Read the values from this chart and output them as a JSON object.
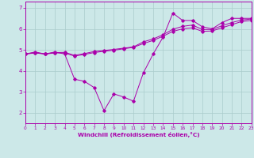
{
  "xlabel": "Windchill (Refroidissement éolien,°C)",
  "bg_color": "#cce8e8",
  "line_color": "#aa00aa",
  "grid_color": "#aacccc",
  "xlim": [
    0,
    23
  ],
  "ylim": [
    1.5,
    7.3
  ],
  "yticks": [
    2,
    3,
    4,
    5,
    6,
    7
  ],
  "xticks": [
    0,
    1,
    2,
    3,
    4,
    5,
    6,
    7,
    8,
    9,
    10,
    11,
    12,
    13,
    14,
    15,
    16,
    17,
    18,
    19,
    20,
    21,
    22,
    23
  ],
  "series": [
    [
      4.8,
      4.9,
      4.8,
      4.9,
      4.8,
      3.6,
      3.5,
      3.2,
      2.1,
      2.9,
      2.75,
      2.55,
      3.9,
      4.8,
      5.6,
      6.75,
      6.4,
      6.4,
      6.1,
      6.0,
      6.3,
      6.5,
      6.5,
      6.5
    ],
    [
      4.8,
      4.85,
      4.8,
      4.85,
      4.85,
      4.7,
      4.78,
      4.87,
      4.93,
      4.98,
      5.05,
      5.12,
      5.3,
      5.45,
      5.65,
      5.88,
      6.0,
      6.05,
      5.88,
      5.9,
      6.05,
      6.2,
      6.35,
      6.4
    ],
    [
      4.8,
      4.87,
      4.8,
      4.87,
      4.88,
      4.74,
      4.82,
      4.92,
      4.97,
      5.02,
      5.08,
      5.14,
      5.38,
      5.52,
      5.72,
      5.98,
      6.12,
      6.18,
      5.97,
      5.97,
      6.15,
      6.3,
      6.42,
      6.47
    ]
  ]
}
